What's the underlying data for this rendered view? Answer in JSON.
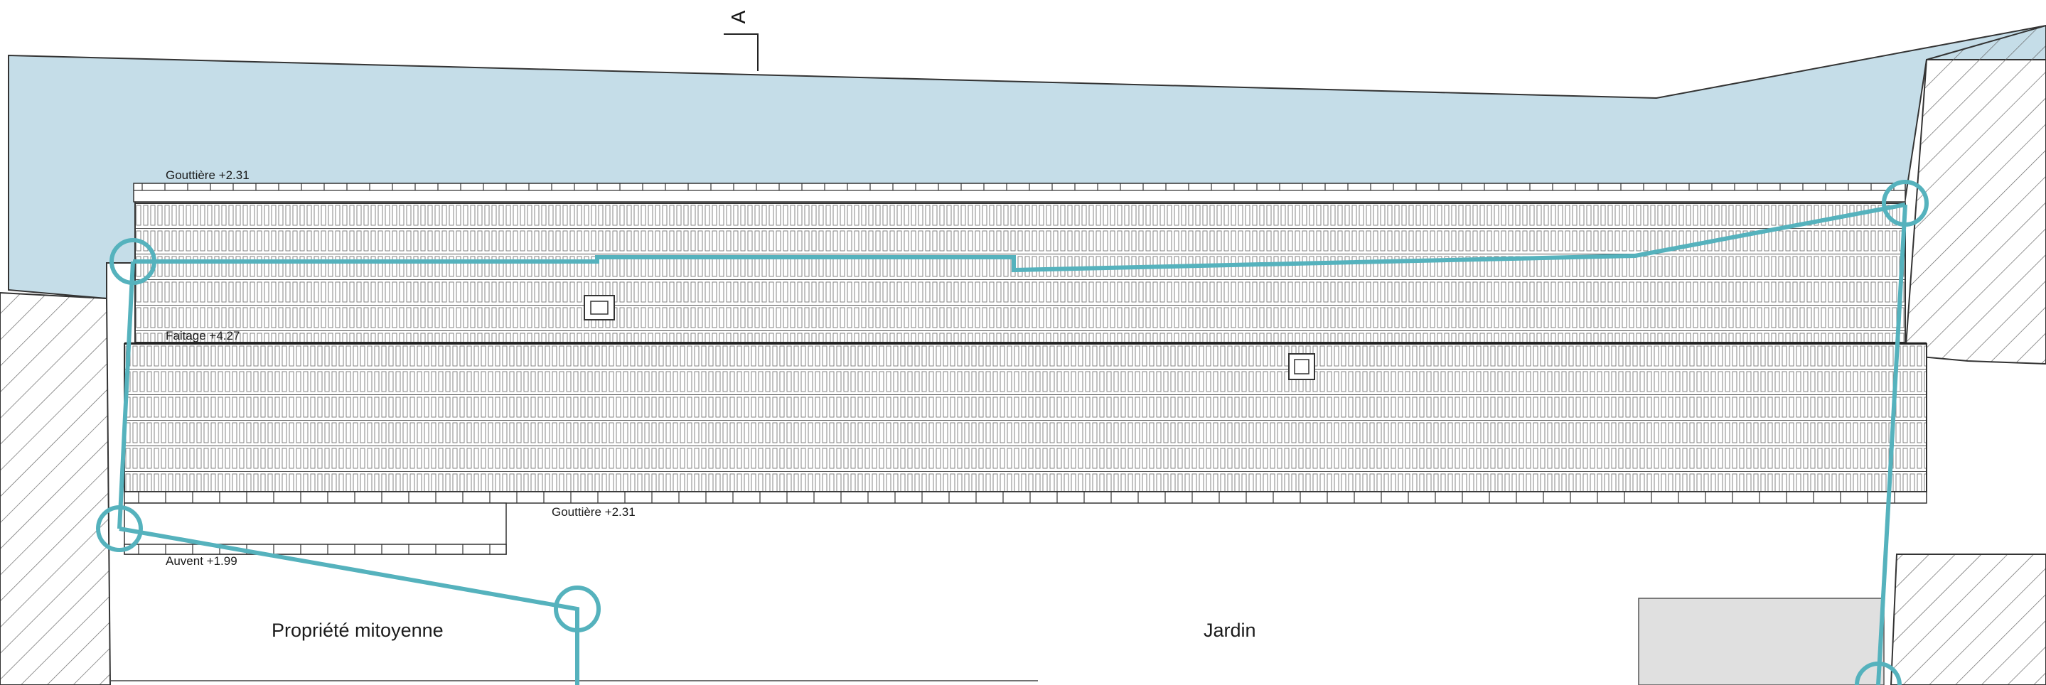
{
  "labels": {
    "gutter_top": "Gouttière +2.31",
    "ridge": "Faitage +4.27",
    "gutter_bottom": "Gouttière +2.31",
    "canopy": "Auvent +1.99",
    "neighbour_property": "Propriété mitoyenne",
    "garden": "Jardin",
    "section_mark": "A"
  },
  "colors": {
    "street": "#c5dde8",
    "boundary": "#55b2bd",
    "annex": "#e0e0e0",
    "line": "#333333"
  }
}
